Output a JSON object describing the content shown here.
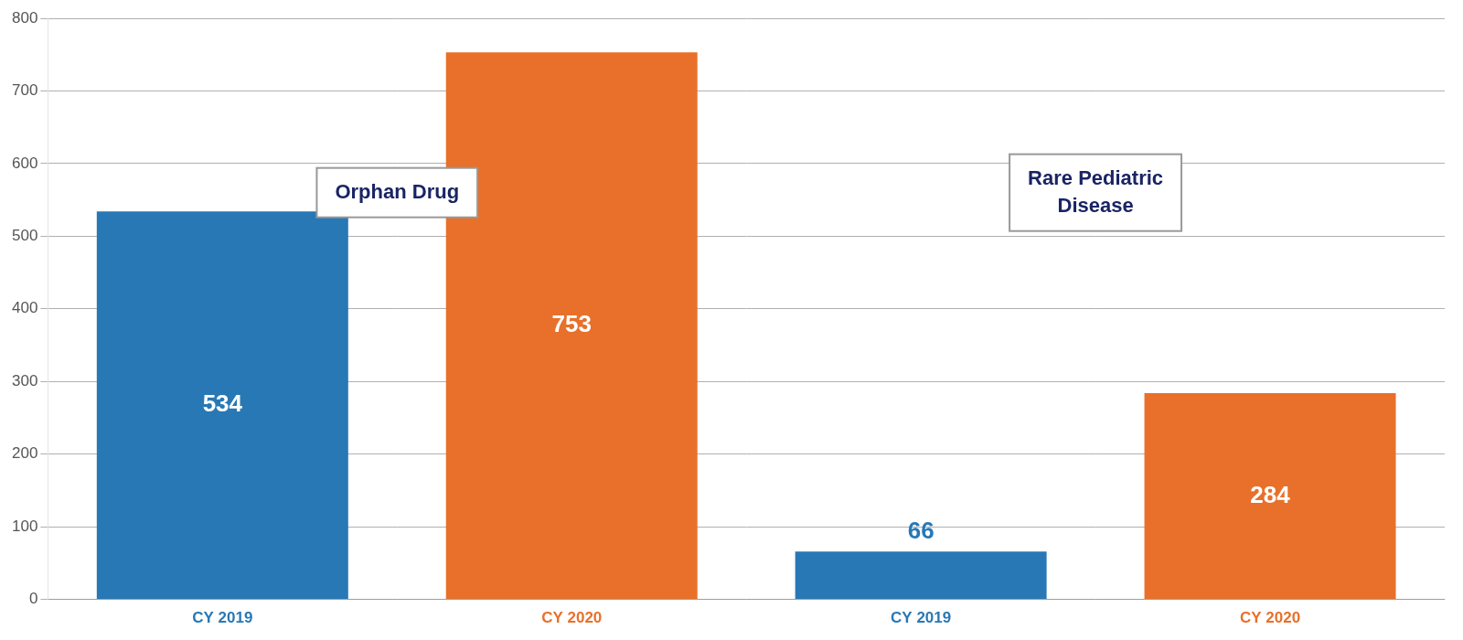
{
  "chart_data": {
    "type": "bar",
    "categories": [
      "CY 2019",
      "CY 2020",
      "CY 2019",
      "CY 2020"
    ],
    "values": [
      534,
      753,
      66,
      284
    ],
    "colors": [
      "#2878b5",
      "#e8702a",
      "#2878b5",
      "#e8702a"
    ],
    "ylim": [
      0,
      800
    ],
    "yticks": [
      0,
      100,
      200,
      300,
      400,
      500,
      600,
      700,
      800
    ],
    "grid": true,
    "data_labels": true,
    "annotations": [
      "Orphan Drug",
      "Rare Pediatric\nDisease"
    ]
  }
}
